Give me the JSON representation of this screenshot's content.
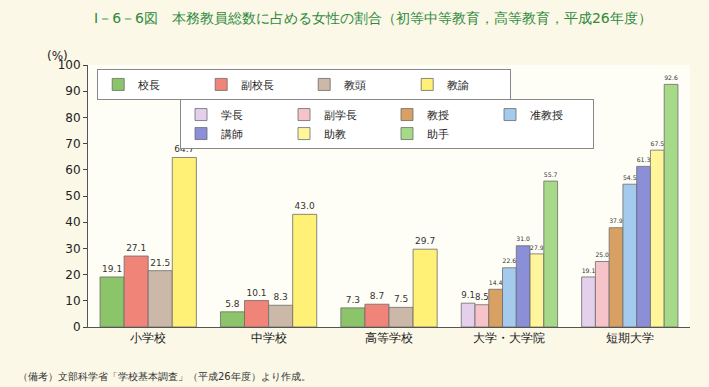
{
  "chart_data": {
    "type": "bar",
    "title": "Ⅰ－6－6図　本務教員総数に占める女性の割合（初等中等教育，高等教育，平成26年度）",
    "ylabel": "(%)",
    "note": "（備考）文部科学省「学校基本調査」（平成26年度）より作成。",
    "categories": [
      "小学校",
      "中学校",
      "高等学校",
      "大学・大学院",
      "短期大学"
    ],
    "series": [
      {
        "name": "校長",
        "color": "#8cc46a",
        "values": [
          19.1,
          5.8,
          7.3,
          null,
          null
        ]
      },
      {
        "name": "副校長",
        "color": "#f08478",
        "values": [
          27.1,
          10.1,
          8.7,
          null,
          null
        ]
      },
      {
        "name": "教頭",
        "color": "#cbb8a8",
        "values": [
          21.5,
          8.3,
          7.5,
          null,
          null
        ]
      },
      {
        "name": "教諭",
        "color": "#fff176",
        "values": [
          64.7,
          43.0,
          29.7,
          null,
          null
        ],
        "value_labels": [
          "64.7",
          "43.0",
          "29.7",
          null,
          null
        ]
      },
      {
        "name": "学長",
        "color": "#e4d0ec",
        "values": [
          null,
          null,
          null,
          9.1,
          19.1
        ]
      },
      {
        "name": "副学長",
        "color": "#f6c4c8",
        "values": [
          null,
          null,
          null,
          8.5,
          25.0
        ],
        "value_labels": [
          null,
          null,
          null,
          "8.5",
          "25.0"
        ]
      },
      {
        "name": "教授",
        "color": "#d8a062",
        "values": [
          null,
          null,
          null,
          14.4,
          37.9
        ]
      },
      {
        "name": "准教授",
        "color": "#a4caee",
        "values": [
          null,
          null,
          null,
          22.6,
          54.5
        ]
      },
      {
        "name": "講師",
        "color": "#8a8fd8",
        "values": [
          null,
          null,
          null,
          31.0,
          61.3
        ],
        "value_labels": [
          null,
          null,
          null,
          "31.0",
          "61.3"
        ]
      },
      {
        "name": "助教",
        "color": "#fff59a",
        "values": [
          null,
          null,
          null,
          27.9,
          67.5
        ]
      },
      {
        "name": "助手",
        "color": "#a6da88",
        "values": [
          null,
          null,
          null,
          55.7,
          92.6
        ]
      }
    ],
    "ylim": [
      0,
      100
    ],
    "yticks": [
      0,
      10,
      20,
      30,
      40,
      50,
      60,
      70,
      80,
      90,
      100
    ],
    "grid": false,
    "legend": "top left",
    "data_labels": true
  }
}
